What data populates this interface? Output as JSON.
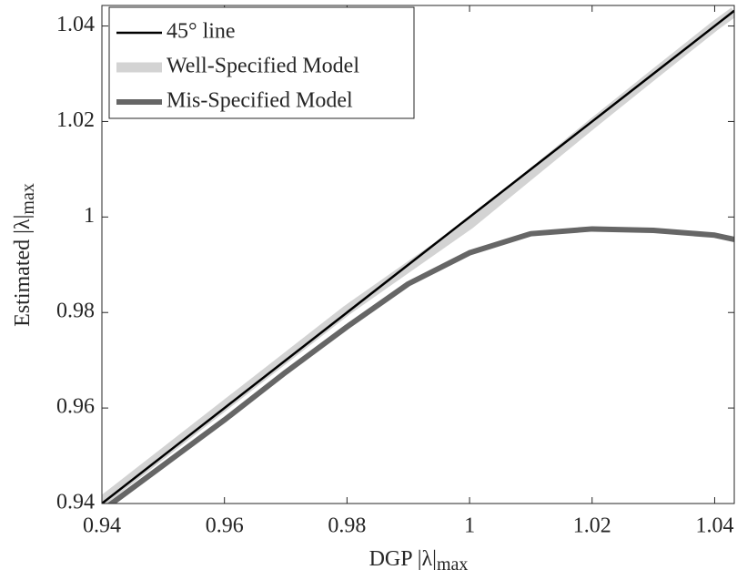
{
  "chart_data": {
    "type": "line",
    "x_label": {
      "text": "DGP |λ|",
      "subscript": "max"
    },
    "y_label": {
      "text": "Estimated |λ|",
      "subscript": "max"
    },
    "x": [
      0.94,
      0.95,
      0.96,
      0.97,
      0.98,
      0.99,
      1.0,
      1.01,
      1.02,
      1.03,
      1.04,
      1.0432
    ],
    "series": [
      {
        "name": "45° line",
        "color": "#000000",
        "values": [
          0.94,
          0.95,
          0.96,
          0.97,
          0.98,
          0.99,
          1.0,
          1.01,
          1.02,
          1.03,
          1.04,
          1.0432
        ]
      },
      {
        "name": "Well-Specified Model",
        "color": "#d3d3d3",
        "values": [
          0.9405,
          0.9505,
          0.9605,
          0.9705,
          0.9805,
          0.9895,
          0.9985,
          1.009,
          1.0195,
          1.0298,
          1.04,
          1.043
        ]
      },
      {
        "name": "Mis-Specified Model",
        "color": "#666666",
        "values": [
          0.9385,
          0.948,
          0.9575,
          0.9675,
          0.977,
          0.986,
          0.9925,
          0.9965,
          0.9975,
          0.9972,
          0.9962,
          0.9953
        ]
      }
    ],
    "xlim": [
      0.94,
      1.0432
    ],
    "ylim": [
      0.94,
      1.0443
    ],
    "xticks": [
      0.94,
      0.96,
      0.98,
      1,
      1.02,
      1.04
    ],
    "yticks": [
      0.94,
      0.96,
      0.98,
      1,
      1.02,
      1.04
    ],
    "legend": "upper left"
  }
}
